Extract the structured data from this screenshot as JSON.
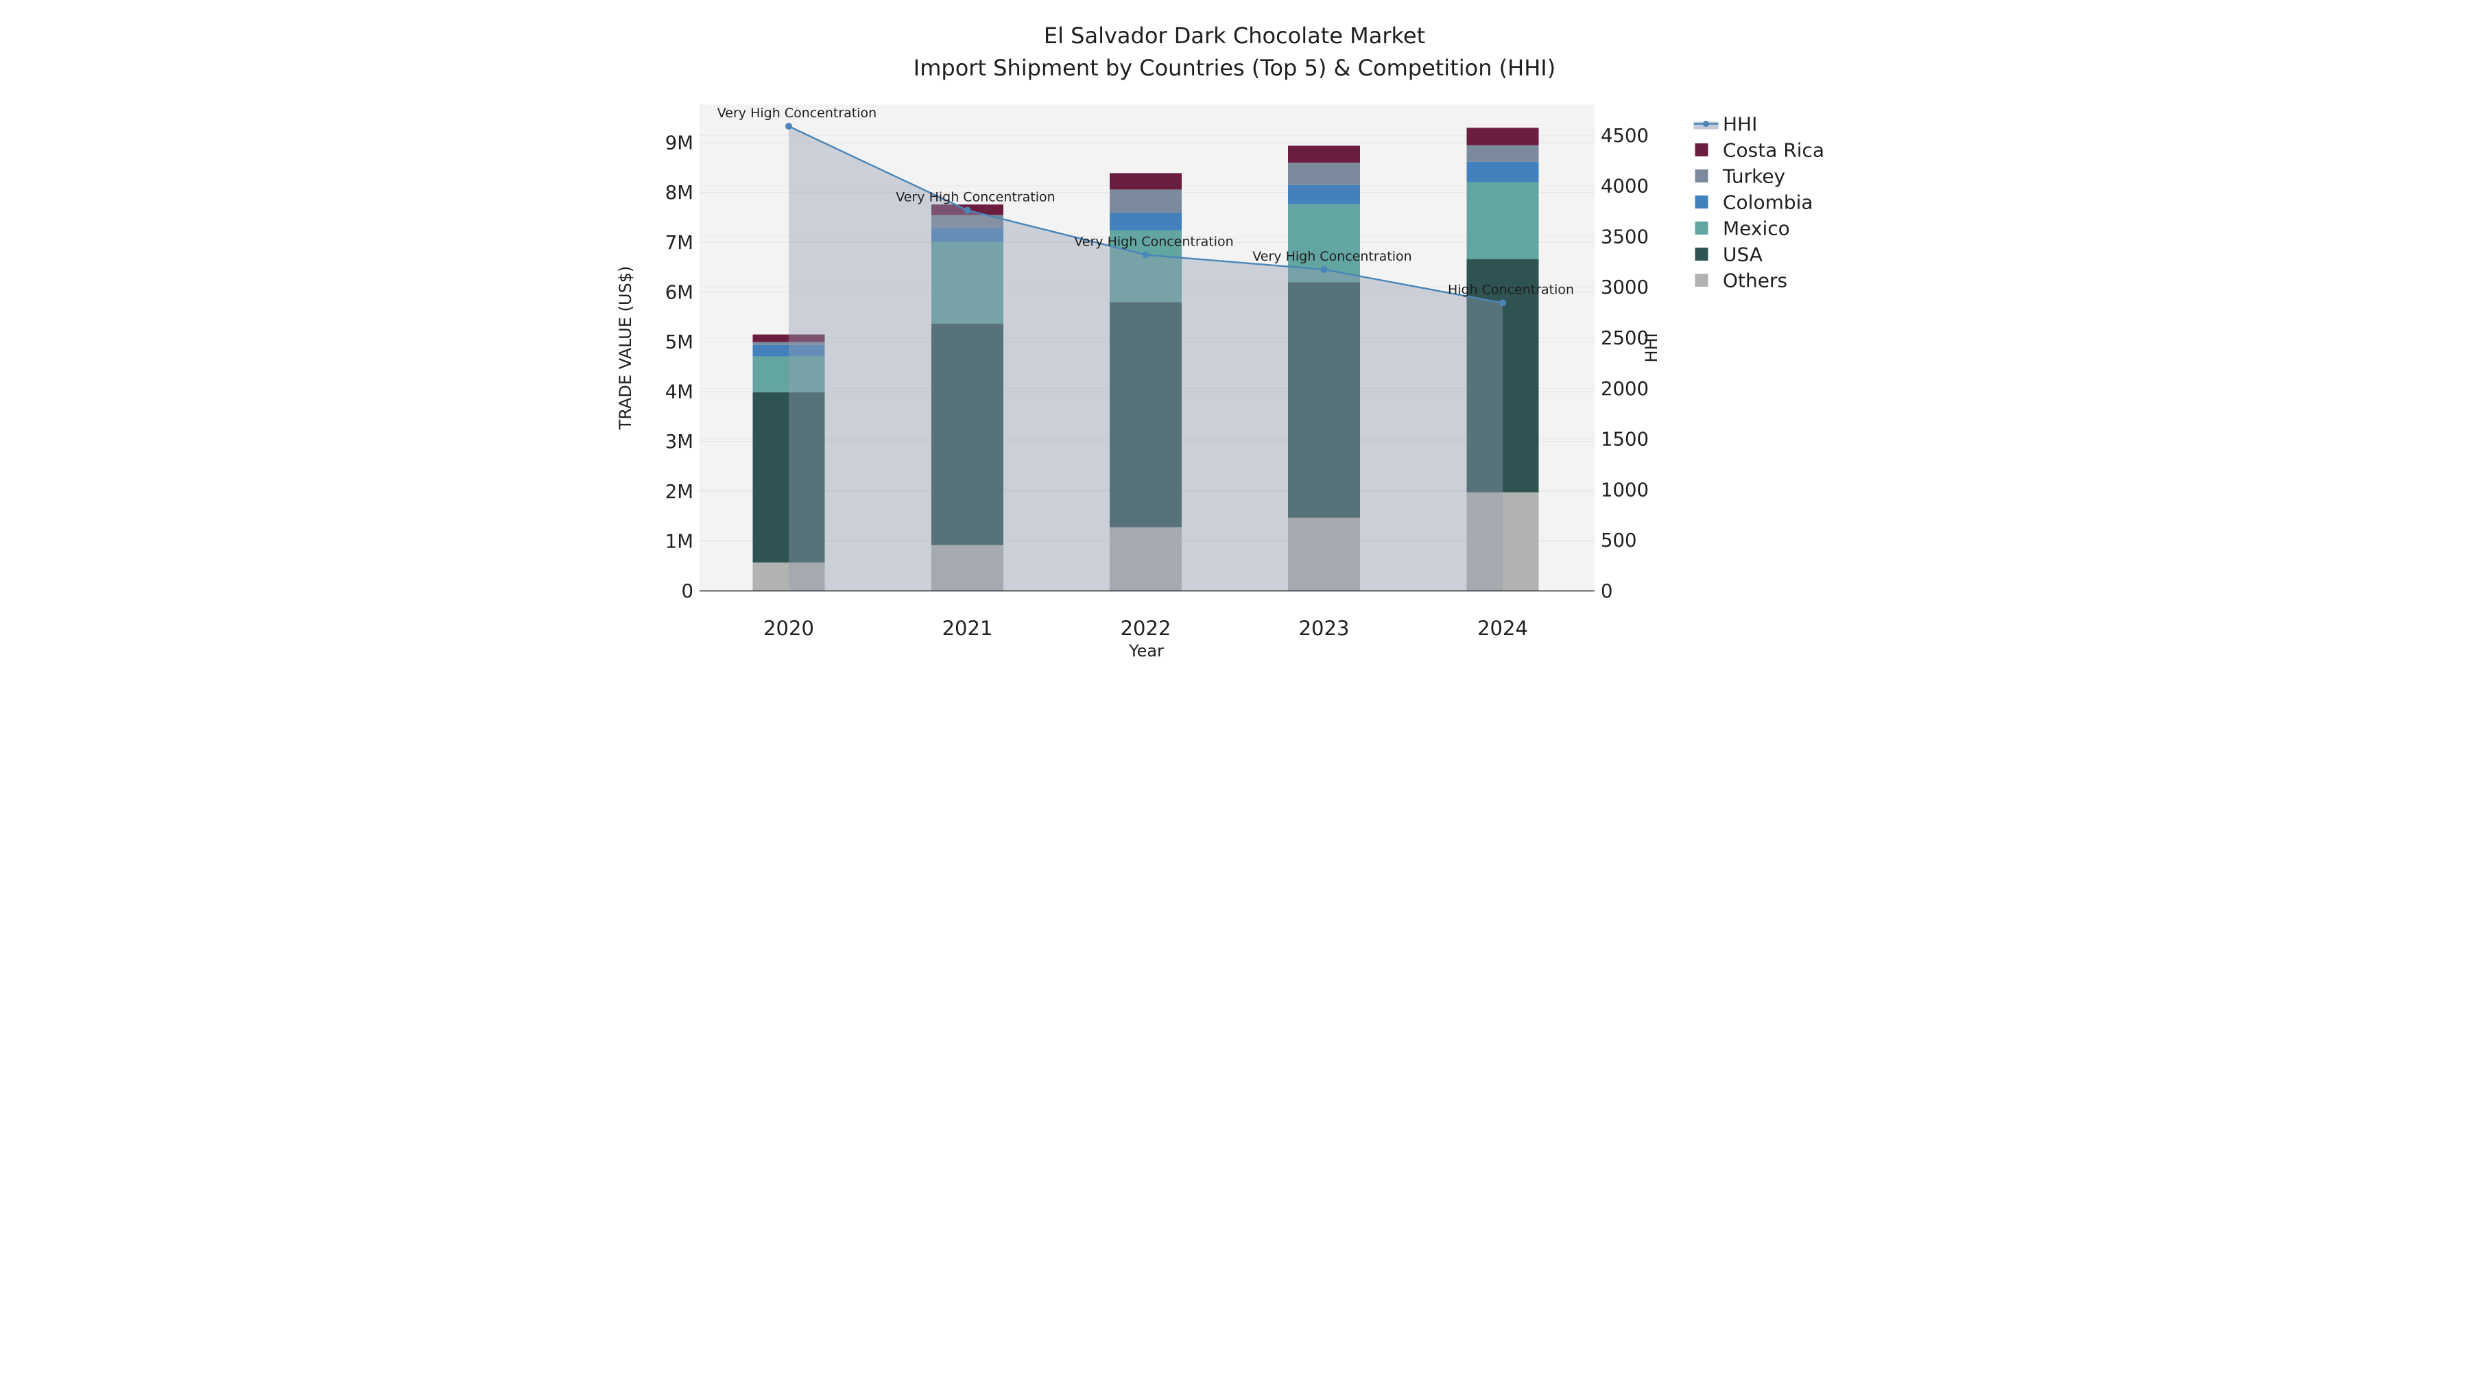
{
  "chart_data": {
    "type": "combo-stacked-bar-line-area",
    "title_line1": "El Salvador Dark Chocolate Market",
    "title_line2": "Import Shipment by Countries (Top 5) & Competition (HHI)",
    "xlabel": "Year",
    "ylabel_left": "TRADE VALUE (US$)",
    "ylabel_right": "HHI",
    "categories": [
      "2020",
      "2021",
      "2022",
      "2023",
      "2024"
    ],
    "stack_order_bottom_to_top": [
      "Others",
      "USA",
      "Mexico",
      "Colombia",
      "Turkey",
      "Costa Rica"
    ],
    "series": [
      {
        "name": "Others",
        "color": "#b1b3b0",
        "values_usd_m": [
          0.57,
          0.92,
          1.28,
          1.47,
          1.98
        ]
      },
      {
        "name": "USA",
        "color": "#2e5352",
        "values_usd_m": [
          3.42,
          4.45,
          4.52,
          4.73,
          4.68
        ]
      },
      {
        "name": "Mexico",
        "color": "#62a5a1",
        "values_usd_m": [
          0.72,
          1.64,
          1.44,
          1.57,
          1.55
        ]
      },
      {
        "name": "Colombia",
        "color": "#4381bd",
        "values_usd_m": [
          0.23,
          0.27,
          0.35,
          0.38,
          0.41
        ]
      },
      {
        "name": "Turkey",
        "color": "#7b8a9c",
        "values_usd_m": [
          0.06,
          0.27,
          0.47,
          0.45,
          0.33
        ]
      },
      {
        "name": "Costa Rica",
        "color": "#6b1d40",
        "values_usd_m": [
          0.15,
          0.21,
          0.33,
          0.34,
          0.35
        ]
      }
    ],
    "hhi": {
      "name": "HHI",
      "line_color": "#4a86b8",
      "area_fill": "rgba(147,157,177,0.42)",
      "values": [
        4590,
        3760,
        3320,
        3175,
        2845
      ]
    },
    "annotations": [
      {
        "year": "2020",
        "text": "Very High Concentration"
      },
      {
        "year": "2021",
        "text": "Very High Concentration"
      },
      {
        "year": "2022",
        "text": "Very High Concentration"
      },
      {
        "year": "2023",
        "text": "Very High Concentration"
      },
      {
        "year": "2024",
        "text": "High Concentration"
      }
    ],
    "axis_left": {
      "tick_labels": [
        "0",
        "1M",
        "2M",
        "3M",
        "4M",
        "5M",
        "6M",
        "7M",
        "8M",
        "9M"
      ],
      "tick_values_m": [
        0,
        1,
        2,
        3,
        4,
        5,
        6,
        7,
        8,
        9
      ],
      "max_m": 9.77
    },
    "axis_right": {
      "tick_labels": [
        "0",
        "500",
        "1000",
        "1500",
        "2000",
        "2500",
        "3000",
        "3500",
        "4000",
        "4500"
      ],
      "tick_values": [
        0,
        500,
        1000,
        1500,
        2000,
        2500,
        3000,
        3500,
        4000,
        4500
      ],
      "max": 4800
    },
    "legend_order": [
      "HHI",
      "Costa Rica",
      "Turkey",
      "Colombia",
      "Mexico",
      "USA",
      "Others"
    ],
    "style": {
      "panel_bg": "#f3f3f3",
      "grid_color": "#e7e7e7",
      "spine_color": "#262626",
      "text_color": "#1f1f1f",
      "legend_hhi_band": "#c5cbd6"
    }
  }
}
